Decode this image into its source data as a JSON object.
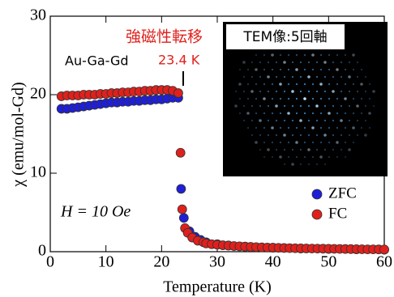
{
  "chart_data": {
    "type": "scatter",
    "xlabel": "Temperature (K)",
    "ylabel": "χ (emu/mol-Gd)",
    "xlim": [
      0,
      60
    ],
    "xticks": [
      0,
      10,
      20,
      30,
      40,
      50,
      60
    ],
    "ylim": [
      0,
      30
    ],
    "yticks": [
      0,
      10,
      20,
      30
    ],
    "annotations": [
      "強磁性転移",
      "23.4 K",
      "Au-Ga-Gd",
      "H = 10 Oe",
      "TEM像:5回軸"
    ],
    "series": [
      {
        "name": "ZFC",
        "color": "#1f1fd8",
        "x": [
          2,
          3,
          4,
          5,
          6,
          7,
          8,
          9,
          10,
          11,
          12,
          13,
          14,
          15,
          16,
          17,
          18,
          19,
          20,
          21,
          22,
          23,
          23.5,
          24,
          25,
          26,
          27,
          28,
          30,
          32,
          35,
          40,
          45,
          50,
          55,
          60
        ],
        "values": [
          18.2,
          18.2,
          18.3,
          18.4,
          18.5,
          18.6,
          18.7,
          18.8,
          18.9,
          19.0,
          19.0,
          19.1,
          19.1,
          19.2,
          19.2,
          19.3,
          19.3,
          19.4,
          19.4,
          19.5,
          19.6,
          19.6,
          8.0,
          4.3,
          2.6,
          1.9,
          1.5,
          1.2,
          0.95,
          0.8,
          0.65,
          0.5,
          0.4,
          0.35,
          0.3,
          0.25
        ]
      },
      {
        "name": "FC",
        "color": "#e0201c",
        "x": [
          2,
          3,
          4,
          5,
          6,
          7,
          8,
          9,
          10,
          11,
          12,
          13,
          14,
          15,
          16,
          17,
          18,
          19,
          20,
          21,
          22,
          23,
          23.4,
          23.7,
          24.2,
          24.7,
          25.5,
          26.5,
          27.5,
          28,
          29,
          30,
          31,
          32,
          33,
          34,
          35,
          36,
          37,
          38,
          39,
          40,
          41,
          42,
          43,
          44,
          45,
          46,
          47,
          48,
          49,
          50,
          51,
          52,
          53,
          54,
          55,
          56,
          57,
          58,
          59,
          60
        ],
        "values": [
          19.8,
          19.9,
          19.9,
          19.9,
          20.0,
          20.0,
          20.0,
          20.1,
          20.1,
          20.2,
          20.2,
          20.3,
          20.3,
          20.4,
          20.4,
          20.5,
          20.5,
          20.6,
          20.6,
          20.6,
          20.5,
          20.2,
          12.6,
          5.4,
          3.0,
          2.4,
          1.8,
          1.4,
          1.2,
          1.05,
          0.95,
          0.88,
          0.82,
          0.77,
          0.72,
          0.68,
          0.64,
          0.61,
          0.58,
          0.55,
          0.53,
          0.51,
          0.49,
          0.47,
          0.45,
          0.44,
          0.42,
          0.41,
          0.4,
          0.39,
          0.38,
          0.37,
          0.36,
          0.35,
          0.34,
          0.33,
          0.32,
          0.31,
          0.3,
          0.3,
          0.29,
          0.28
        ]
      }
    ]
  }
}
